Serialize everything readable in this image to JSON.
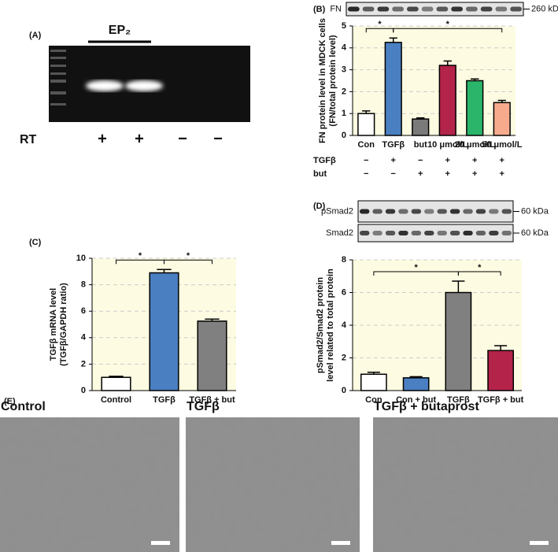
{
  "gel": {
    "panel": "(A)",
    "title": "EP₂",
    "row_label": "RT",
    "signs": [
      "+",
      "+",
      "−",
      "−"
    ]
  },
  "chart_data": [
    {
      "type": "bar",
      "panel": "(B)",
      "ylabel": [
        "FN protein level in MDCK cells",
        "(FN/total protein level)"
      ],
      "categories": [
        "Con",
        "TGFβ",
        "but",
        "10 μmol/L",
        "20 μmol/L",
        "50 μmol/L"
      ],
      "values": [
        1.0,
        4.25,
        0.75,
        3.2,
        2.5,
        1.5
      ],
      "errors": [
        0.12,
        0.2,
        0.05,
        0.2,
        0.08,
        0.1
      ],
      "colors": [
        "#ffffff",
        "#4a7fc1",
        "#7a7a7a",
        "#b3234a",
        "#2bb56a",
        "#f7ab8c"
      ],
      "ylim": [
        0,
        5
      ],
      "yticks": [
        0,
        1,
        2,
        3,
        4,
        5
      ],
      "grid": true,
      "significance": [
        {
          "from": 0,
          "to": 1,
          "label": "*"
        },
        {
          "from": 1,
          "to": 5,
          "label": "*"
        }
      ],
      "treatments": [
        {
          "name": "TGFβ",
          "signs": [
            "−",
            "+",
            "−",
            "+",
            "+",
            "+"
          ]
        },
        {
          "name": "but",
          "signs": [
            "−",
            "−",
            "+",
            "+",
            "+",
            "+"
          ]
        }
      ],
      "blot_rows": [
        {
          "name": "FN",
          "marker": "260 kDa"
        }
      ]
    },
    {
      "type": "bar",
      "panel": "(C)",
      "ylabel": [
        "TGFβ mRNA level",
        "(TGFβ/GAPDH ratio)"
      ],
      "categories": [
        "Control",
        "TGFβ",
        "TGFβ + but"
      ],
      "values": [
        1.0,
        8.9,
        5.25
      ],
      "errors": [
        0.08,
        0.25,
        0.15
      ],
      "colors": [
        "#ffffff",
        "#4a7fc1",
        "#808080"
      ],
      "ylim": [
        0,
        10
      ],
      "yticks": [
        0,
        2,
        4,
        6,
        8,
        10
      ],
      "grid": true,
      "significance": [
        {
          "from": 0,
          "to": 1,
          "label": "*"
        },
        {
          "from": 1,
          "to": 2,
          "label": "*"
        }
      ]
    },
    {
      "type": "bar",
      "panel": "(D)",
      "ylabel": [
        "pSmad2/Smad2 protein",
        "level related to total protein"
      ],
      "categories": [
        "Con",
        "Con + but",
        "TGFβ",
        "TGFβ + but"
      ],
      "values": [
        1.0,
        0.78,
        6.0,
        2.45
      ],
      "errors": [
        0.12,
        0.07,
        0.7,
        0.3
      ],
      "colors": [
        "#ffffff",
        "#4a7fc1",
        "#808080",
        "#b3234a"
      ],
      "ylim": [
        0,
        8
      ],
      "yticks": [
        0,
        2,
        4,
        6,
        8
      ],
      "grid": true,
      "significance": [
        {
          "from": 0,
          "to": 2,
          "label": "*"
        },
        {
          "from": 2,
          "to": 3,
          "label": "*"
        }
      ],
      "blot_rows": [
        {
          "name": "pSmad2",
          "marker": "60 kDa"
        },
        {
          "name": "Smad2",
          "marker": "60 kDa"
        }
      ]
    }
  ],
  "micrographs": {
    "panel": "(E)",
    "titles": [
      "Control",
      "TGFβ",
      "TGFβ + butaprost"
    ]
  }
}
